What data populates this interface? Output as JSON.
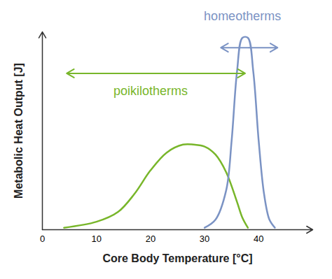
{
  "chart_data": {
    "type": "line",
    "xlabel": "Core Body Temperature [°C]",
    "ylabel": "Metabolic Heat Output [J]",
    "xlim": [
      0,
      50
    ],
    "xticks": [
      0,
      10,
      20,
      30,
      40
    ],
    "ylim": [
      0,
      100
    ],
    "tick_labels": "x",
    "grid": false,
    "series": [
      {
        "name": "poikilotherms",
        "color": "#78b62a",
        "x": [
          4,
          10,
          14,
          17,
          20,
          23,
          26,
          28,
          30,
          32,
          34,
          36,
          37,
          38
        ],
        "values": [
          1,
          4,
          9,
          18,
          30,
          39,
          43,
          43,
          42,
          38,
          29,
          14,
          6,
          1
        ],
        "label_x": 20,
        "label_y": 70,
        "range": [
          4.5,
          37.5
        ],
        "range_y": 79
      },
      {
        "name": "homeotherms",
        "color": "#7b93c4",
        "x": [
          30,
          32,
          34,
          35,
          36,
          37,
          38,
          39,
          40,
          41,
          42,
          43
        ],
        "values": [
          1,
          5,
          20,
          45,
          80,
          97,
          97,
          80,
          45,
          18,
          5,
          1
        ],
        "label_x": 37,
        "label_y": 108,
        "range": [
          33,
          43.5
        ],
        "range_y": 92
      }
    ]
  }
}
